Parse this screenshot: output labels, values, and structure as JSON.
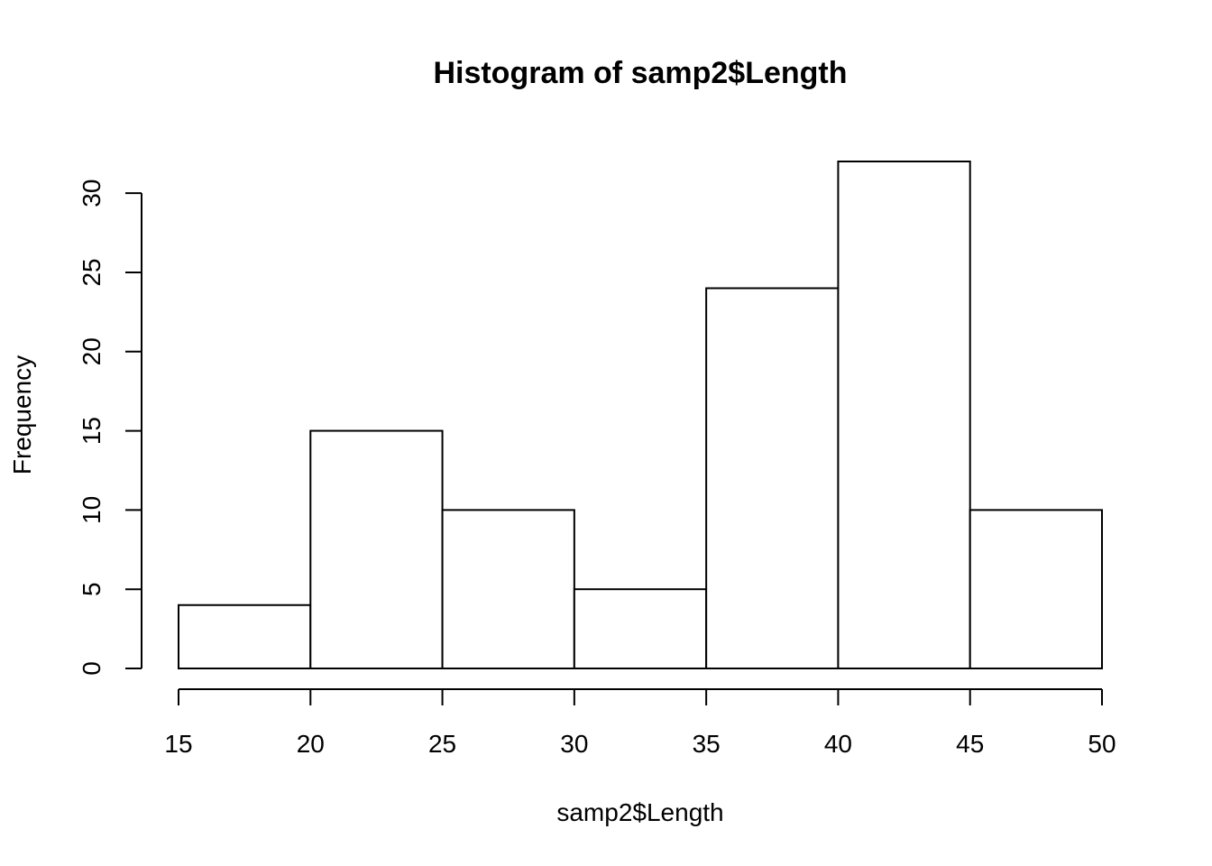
{
  "chart_data": {
    "type": "bar",
    "histogram": true,
    "title": "Histogram of samp2$Length",
    "xlabel": "samp2$Length",
    "ylabel": "Frequency",
    "bins": [
      {
        "start": 15,
        "end": 20,
        "count": 4
      },
      {
        "start": 20,
        "end": 25,
        "count": 15
      },
      {
        "start": 25,
        "end": 30,
        "count": 10
      },
      {
        "start": 30,
        "end": 35,
        "count": 5
      },
      {
        "start": 35,
        "end": 40,
        "count": 24
      },
      {
        "start": 40,
        "end": 45,
        "count": 32
      },
      {
        "start": 45,
        "end": 50,
        "count": 10
      }
    ],
    "xlim": [
      15,
      50
    ],
    "ylim": [
      0,
      32
    ],
    "xticks": [
      "15",
      "20",
      "25",
      "30",
      "35",
      "40",
      "45",
      "50"
    ],
    "yticks": [
      "0",
      "5",
      "10",
      "15",
      "20",
      "25",
      "30"
    ],
    "grid": false,
    "bar_fill": "#ffffff",
    "bar_stroke": "#000000"
  }
}
